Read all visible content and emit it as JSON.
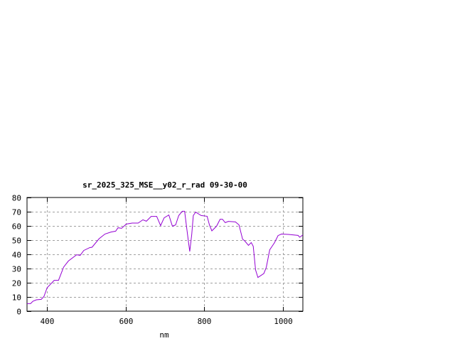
{
  "chart_data": {
    "type": "line",
    "title": "sr_2025_325_MSE__y02_r_rad 09-30-00",
    "xlabel": "nm",
    "ylabel": "",
    "xlim": [
      350,
      1050
    ],
    "ylim": [
      0,
      80
    ],
    "xticks": [
      400,
      600,
      800,
      1000
    ],
    "yticks": [
      0,
      10,
      20,
      30,
      40,
      50,
      60,
      70,
      80
    ],
    "grid": true,
    "line_color": "#9400d3",
    "series": [
      {
        "x": [
          350,
          359,
          365,
          374,
          386,
          393,
          401,
          419,
          430,
          443,
          455,
          476,
          485,
          494,
          509,
          515,
          533,
          548,
          563,
          575,
          581,
          590,
          602,
          617,
          632,
          644,
          653,
          665,
          679,
          689,
          698,
          710,
          719,
          727,
          735,
          744,
          750,
          755,
          760,
          763,
          768,
          772,
          778,
          792,
          807,
          813,
          819,
          831,
          840,
          846,
          853,
          861,
          879,
          888,
          897,
          903,
          912,
          919,
          924,
          930,
          936,
          951,
          957,
          966,
          978,
          987,
          996,
          1014,
          1038,
          1042,
          1050
        ],
        "y": [
          5.3,
          5.3,
          7,
          8,
          8.3,
          10.3,
          16.5,
          21.7,
          21.7,
          31,
          35.3,
          39.7,
          39.3,
          42.7,
          44.7,
          45,
          51,
          54.3,
          55.7,
          56.3,
          58.7,
          58.3,
          61.3,
          62,
          62,
          64.3,
          63.3,
          66.7,
          66.7,
          60.2,
          65.7,
          67.7,
          59.8,
          60.7,
          67.3,
          70.3,
          70.3,
          59,
          48,
          42,
          54,
          67.3,
          69.7,
          67.3,
          66.8,
          60.7,
          56.5,
          59.8,
          64.7,
          64.7,
          62.3,
          63.2,
          62.8,
          60.7,
          50.7,
          49.3,
          46.3,
          48.3,
          45.7,
          29,
          23.7,
          26.5,
          30.7,
          43.2,
          48.2,
          53.2,
          54.3,
          54,
          53.3,
          52,
          53.7
        ]
      }
    ]
  }
}
